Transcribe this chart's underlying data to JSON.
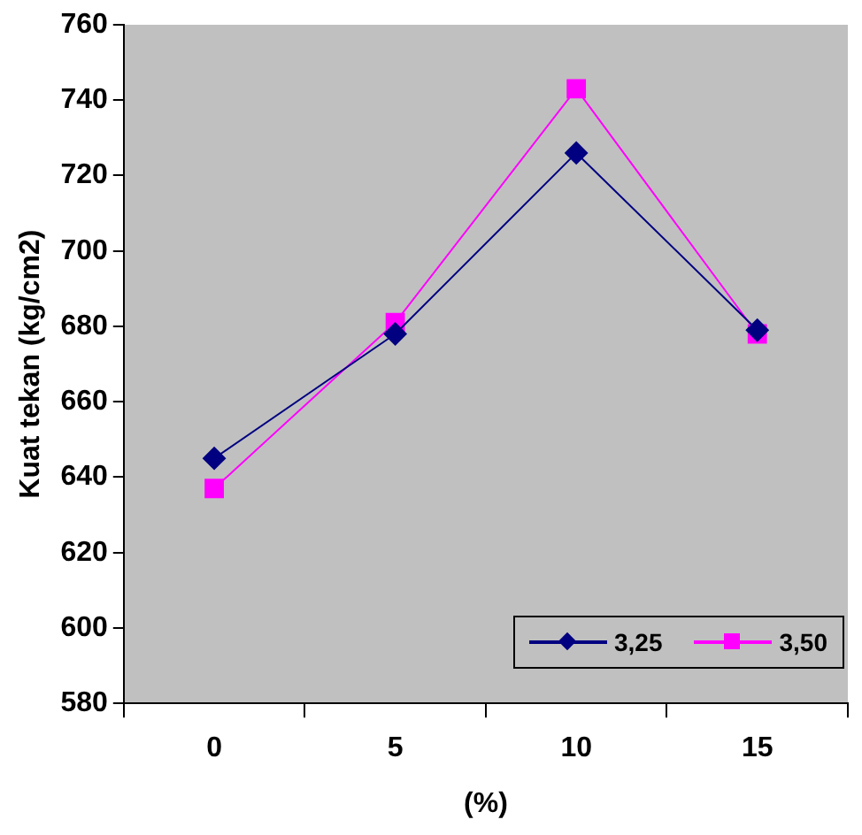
{
  "chart_data": {
    "type": "line",
    "xlabel": "(%)",
    "ylabel": "Kuat tekan (kg/cm2)",
    "categories": [
      "0",
      "5",
      "10",
      "15"
    ],
    "series": [
      {
        "name": "3,25",
        "color": "#000080",
        "marker": "diamond",
        "values": [
          645,
          678,
          726,
          679
        ]
      },
      {
        "name": "3,50",
        "color": "#ff00ff",
        "marker": "square",
        "values": [
          637,
          681,
          743,
          678
        ]
      }
    ],
    "ylim": [
      580,
      760
    ],
    "yticks": [
      580,
      600,
      620,
      640,
      660,
      680,
      700,
      720,
      740,
      760
    ],
    "grid": false,
    "legend": "bottom right",
    "line_style": "solid"
  }
}
